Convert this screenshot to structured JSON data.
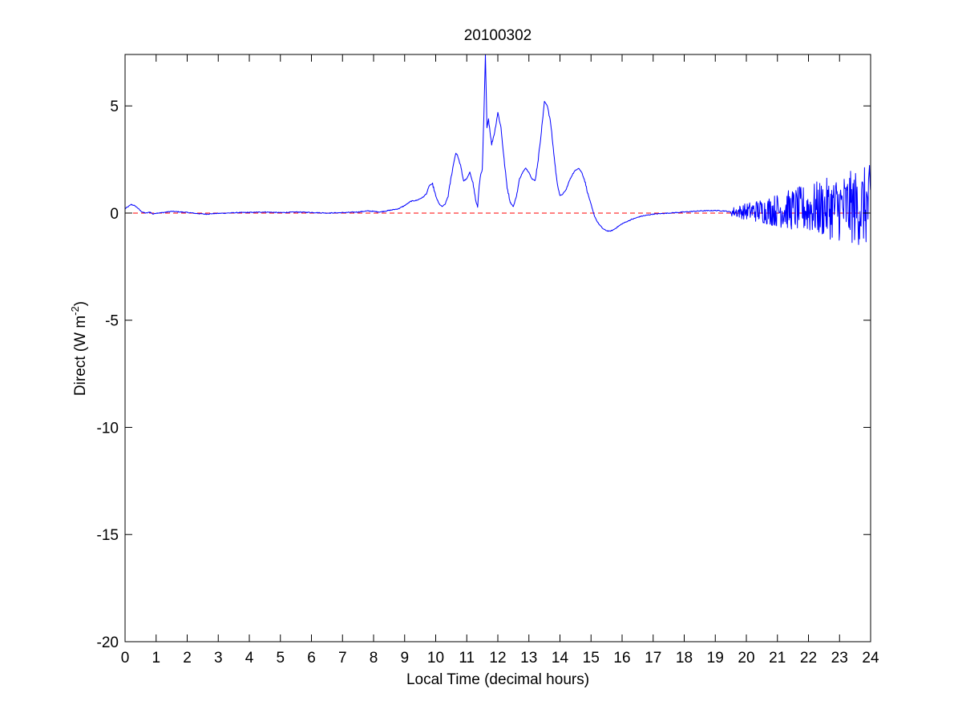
{
  "chart_data": {
    "type": "line",
    "title": "20100302",
    "xlabel": "Local Time (decimal hours)",
    "ylabel": "Direct (W m",
    "ylabel_sup": "-2",
    "ylabel_close": ")",
    "xlim": [
      0,
      24
    ],
    "ylim": [
      -20,
      7.4
    ],
    "x_ticks": [
      0,
      1,
      2,
      3,
      4,
      5,
      6,
      7,
      8,
      9,
      10,
      11,
      12,
      13,
      14,
      15,
      16,
      17,
      18,
      19,
      20,
      21,
      22,
      23,
      24
    ],
    "y_ticks": [
      5,
      0,
      -5,
      -10,
      -15,
      -20
    ],
    "grid": false,
    "colors": {
      "series": "#0000ff",
      "reference": "#ff0000",
      "axes": "#000000",
      "background": "#ffffff"
    },
    "series": [
      {
        "style": "solid",
        "color": "#0000ff",
        "noise_from_x": 19.5,
        "points": [
          [
            0.0,
            0.2
          ],
          [
            0.1,
            0.3
          ],
          [
            0.2,
            0.4
          ],
          [
            0.3,
            0.35
          ],
          [
            0.4,
            0.25
          ],
          [
            0.5,
            0.1
          ],
          [
            0.6,
            0.02
          ],
          [
            0.7,
            0.0
          ],
          [
            0.8,
            0.05
          ],
          [
            0.9,
            -0.05
          ],
          [
            1.0,
            0.0
          ],
          [
            1.2,
            0.02
          ],
          [
            1.5,
            0.08
          ],
          [
            1.8,
            0.05
          ],
          [
            2.0,
            0.03
          ],
          [
            2.3,
            -0.02
          ],
          [
            2.6,
            -0.05
          ],
          [
            2.9,
            -0.02
          ],
          [
            3.3,
            0.0
          ],
          [
            3.6,
            0.02
          ],
          [
            4.0,
            0.03
          ],
          [
            4.5,
            0.05
          ],
          [
            5.0,
            0.02
          ],
          [
            5.5,
            0.05
          ],
          [
            6.0,
            0.03
          ],
          [
            6.5,
            0.0
          ],
          [
            7.0,
            0.02
          ],
          [
            7.5,
            0.05
          ],
          [
            7.8,
            0.1
          ],
          [
            8.0,
            0.08
          ],
          [
            8.2,
            0.05
          ],
          [
            8.4,
            0.1
          ],
          [
            8.6,
            0.15
          ],
          [
            8.8,
            0.2
          ],
          [
            9.0,
            0.35
          ],
          [
            9.2,
            0.55
          ],
          [
            9.4,
            0.6
          ],
          [
            9.6,
            0.75
          ],
          [
            9.7,
            0.9
          ],
          [
            9.8,
            1.3
          ],
          [
            9.9,
            1.35
          ],
          [
            10.0,
            0.8
          ],
          [
            10.1,
            0.45
          ],
          [
            10.2,
            0.3
          ],
          [
            10.3,
            0.4
          ],
          [
            10.4,
            0.8
          ],
          [
            10.5,
            1.7
          ],
          [
            10.6,
            2.5
          ],
          [
            10.65,
            2.8
          ],
          [
            10.7,
            2.7
          ],
          [
            10.8,
            2.2
          ],
          [
            10.9,
            1.5
          ],
          [
            11.0,
            1.6
          ],
          [
            11.1,
            1.9
          ],
          [
            11.2,
            1.4
          ],
          [
            11.3,
            0.5
          ],
          [
            11.35,
            0.3
          ],
          [
            11.4,
            1.3
          ],
          [
            11.45,
            1.8
          ],
          [
            11.5,
            2.0
          ],
          [
            11.55,
            4.5
          ],
          [
            11.6,
            7.4
          ],
          [
            11.65,
            4.0
          ],
          [
            11.7,
            4.4
          ],
          [
            11.8,
            3.2
          ],
          [
            11.9,
            3.8
          ],
          [
            12.0,
            4.7
          ],
          [
            12.1,
            4.0
          ],
          [
            12.2,
            2.5
          ],
          [
            12.3,
            1.2
          ],
          [
            12.4,
            0.5
          ],
          [
            12.5,
            0.3
          ],
          [
            12.6,
            0.8
          ],
          [
            12.7,
            1.6
          ],
          [
            12.8,
            1.9
          ],
          [
            12.9,
            2.1
          ],
          [
            13.0,
            1.9
          ],
          [
            13.1,
            1.6
          ],
          [
            13.2,
            1.5
          ],
          [
            13.3,
            2.5
          ],
          [
            13.4,
            3.8
          ],
          [
            13.5,
            5.2
          ],
          [
            13.6,
            5.0
          ],
          [
            13.7,
            4.2
          ],
          [
            13.8,
            2.8
          ],
          [
            13.9,
            1.5
          ],
          [
            14.0,
            0.8
          ],
          [
            14.1,
            0.9
          ],
          [
            14.2,
            1.1
          ],
          [
            14.3,
            1.5
          ],
          [
            14.4,
            1.8
          ],
          [
            14.5,
            2.0
          ],
          [
            14.6,
            2.1
          ],
          [
            14.7,
            1.9
          ],
          [
            14.8,
            1.5
          ],
          [
            14.9,
            0.9
          ],
          [
            15.0,
            0.4
          ],
          [
            15.1,
            -0.1
          ],
          [
            15.2,
            -0.4
          ],
          [
            15.3,
            -0.6
          ],
          [
            15.4,
            -0.75
          ],
          [
            15.5,
            -0.82
          ],
          [
            15.6,
            -0.85
          ],
          [
            15.7,
            -0.8
          ],
          [
            15.8,
            -0.7
          ],
          [
            16.0,
            -0.5
          ],
          [
            16.3,
            -0.3
          ],
          [
            16.6,
            -0.15
          ],
          [
            17.0,
            -0.05
          ],
          [
            17.5,
            0.0
          ],
          [
            18.0,
            0.05
          ],
          [
            18.5,
            0.1
          ],
          [
            19.0,
            0.12
          ],
          [
            19.3,
            0.1
          ],
          [
            19.5,
            0.05
          ]
        ]
      },
      {
        "style": "dashed",
        "color": "#ff0000",
        "points": [
          [
            0,
            0
          ],
          [
            24,
            0
          ]
        ]
      }
    ]
  }
}
